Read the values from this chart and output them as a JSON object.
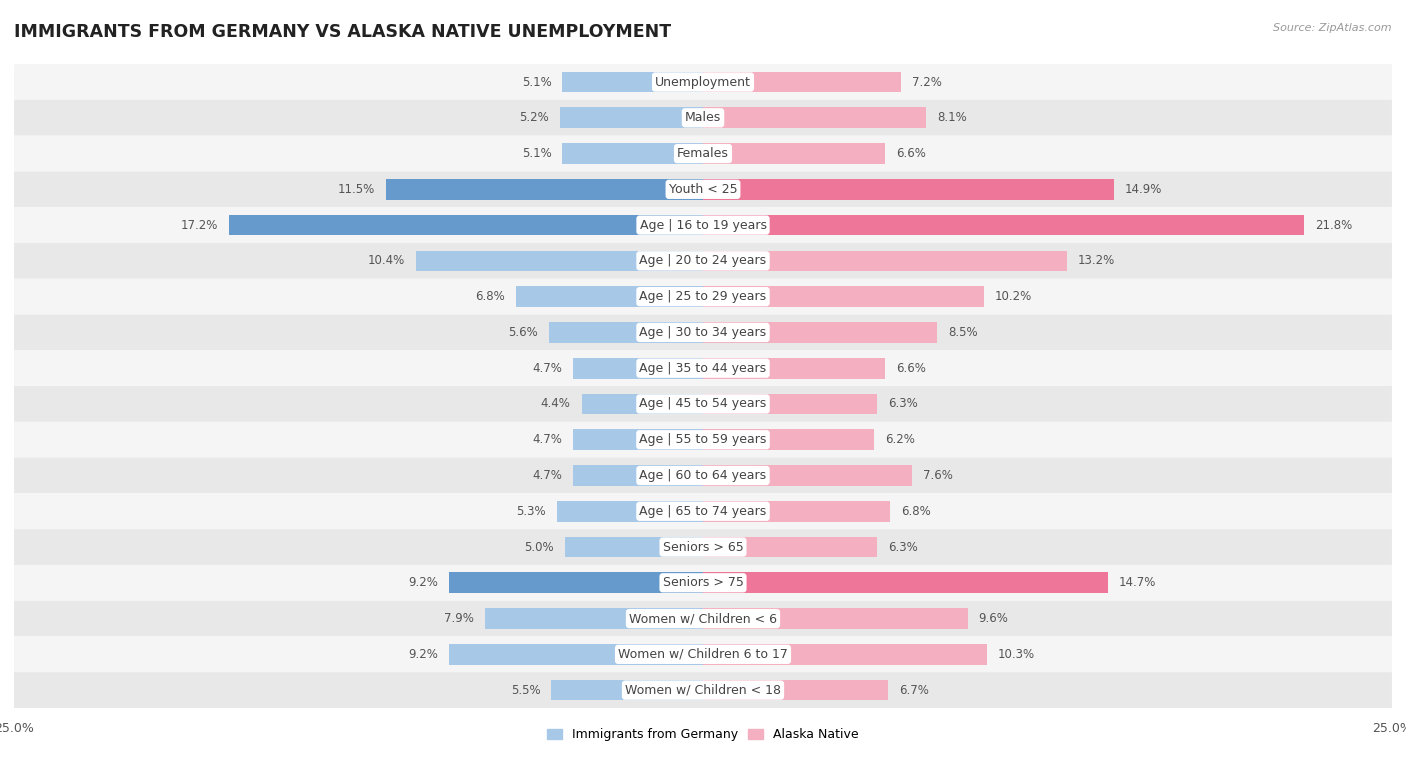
{
  "title": "IMMIGRANTS FROM GERMANY VS ALASKA NATIVE UNEMPLOYMENT",
  "source": "Source: ZipAtlas.com",
  "categories": [
    "Unemployment",
    "Males",
    "Females",
    "Youth < 25",
    "Age | 16 to 19 years",
    "Age | 20 to 24 years",
    "Age | 25 to 29 years",
    "Age | 30 to 34 years",
    "Age | 35 to 44 years",
    "Age | 45 to 54 years",
    "Age | 55 to 59 years",
    "Age | 60 to 64 years",
    "Age | 65 to 74 years",
    "Seniors > 65",
    "Seniors > 75",
    "Women w/ Children < 6",
    "Women w/ Children 6 to 17",
    "Women w/ Children < 18"
  ],
  "left_values": [
    5.1,
    5.2,
    5.1,
    11.5,
    17.2,
    10.4,
    6.8,
    5.6,
    4.7,
    4.4,
    4.7,
    4.7,
    5.3,
    5.0,
    9.2,
    7.9,
    9.2,
    5.5
  ],
  "right_values": [
    7.2,
    8.1,
    6.6,
    14.9,
    21.8,
    13.2,
    10.2,
    8.5,
    6.6,
    6.3,
    6.2,
    7.6,
    6.8,
    6.3,
    14.7,
    9.6,
    10.3,
    6.7
  ],
  "left_color": "#a8c8e8",
  "right_color": "#f4b0c0",
  "left_highlight_color": "#6699cc",
  "right_highlight_color": "#ee7799",
  "highlight_indices": [
    3,
    4,
    14
  ],
  "bar_height": 0.58,
  "xlim": 25.0,
  "row_bg_even": "#f5f5f5",
  "row_bg_odd": "#e8e8e8",
  "left_label": "Immigrants from Germany",
  "right_label": "Alaska Native",
  "title_fontsize": 12.5,
  "label_fontsize": 9,
  "value_fontsize": 8.5,
  "axis_fontsize": 9
}
